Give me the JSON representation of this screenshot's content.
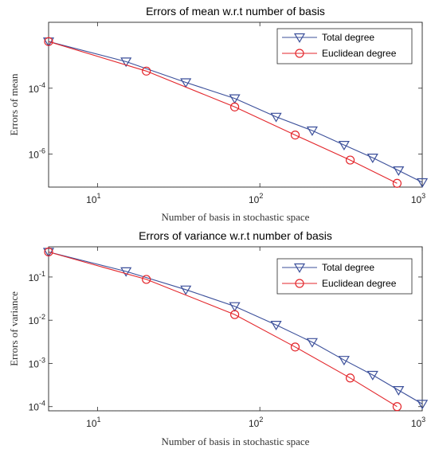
{
  "chart_data": [
    {
      "type": "line",
      "title": "Errors of mean w.r.t number of basis",
      "xlabel": "Number of basis in stochastic space",
      "ylabel": "Errors of mean",
      "xscale": "log",
      "yscale": "log",
      "xlim": [
        5,
        1000
      ],
      "ylim": [
        1e-07,
        0.01
      ],
      "xticks": [
        {
          "value": 10,
          "mantissa": "10",
          "exponent": "1"
        },
        {
          "value": 100,
          "mantissa": "10",
          "exponent": "2"
        },
        {
          "value": 1000,
          "mantissa": "10",
          "exponent": "3"
        }
      ],
      "yticks": [
        {
          "value": 1e-06,
          "mantissa": "10",
          "exponent": "-6"
        },
        {
          "value": 0.0001,
          "mantissa": "10",
          "exponent": "-4"
        }
      ],
      "grid": true,
      "legend_position": "top-right",
      "series": [
        {
          "name": "Total degree",
          "color": "#3b4f9a",
          "marker": "triangle-down",
          "x": [
            5,
            15,
            35,
            70,
            126,
            210,
            330,
            495,
            715,
            1001
          ],
          "y": [
            0.0026,
            0.00064,
            0.00015,
            4.9e-05,
            1.35e-05,
            5.2e-06,
            1.9e-06,
            7.8e-07,
            3.2e-07,
            1.4e-07
          ]
        },
        {
          "name": "Euclidean degree",
          "color": "#e3262b",
          "marker": "circle",
          "x": [
            5,
            20,
            70,
            165,
            360,
            700
          ],
          "y": [
            0.0026,
            0.00033,
            2.7e-05,
            3.8e-06,
            6.6e-07,
            1.3e-07
          ]
        }
      ]
    },
    {
      "type": "line",
      "title": "Errors of variance w.r.t number of basis",
      "xlabel": "Number of basis in stochastic space",
      "ylabel": "Errors of variance",
      "xscale": "log",
      "yscale": "log",
      "xlim": [
        5,
        1000
      ],
      "ylim": [
        8e-05,
        0.5
      ],
      "xticks": [
        {
          "value": 10,
          "mantissa": "10",
          "exponent": "1"
        },
        {
          "value": 100,
          "mantissa": "10",
          "exponent": "2"
        },
        {
          "value": 1000,
          "mantissa": "10",
          "exponent": "3"
        }
      ],
      "yticks": [
        {
          "value": 0.0001,
          "mantissa": "10",
          "exponent": "-4"
        },
        {
          "value": 0.001,
          "mantissa": "10",
          "exponent": "-3"
        },
        {
          "value": 0.01,
          "mantissa": "10",
          "exponent": "-2"
        },
        {
          "value": 0.1,
          "mantissa": "10",
          "exponent": "-1"
        }
      ],
      "grid": true,
      "legend_position": "top-right",
      "series": [
        {
          "name": "Total degree",
          "color": "#3b4f9a",
          "marker": "triangle-down",
          "x": [
            5,
            15,
            35,
            70,
            126,
            210,
            330,
            495,
            715,
            1001
          ],
          "y": [
            0.38,
            0.135,
            0.051,
            0.021,
            0.0078,
            0.0031,
            0.0012,
            0.00054,
            0.00024,
            0.000115
          ]
        },
        {
          "name": "Euclidean degree",
          "color": "#e3262b",
          "marker": "circle",
          "x": [
            5,
            20,
            70,
            165,
            360,
            700
          ],
          "y": [
            0.38,
            0.088,
            0.0135,
            0.0024,
            0.00046,
            0.0001
          ]
        }
      ]
    }
  ]
}
